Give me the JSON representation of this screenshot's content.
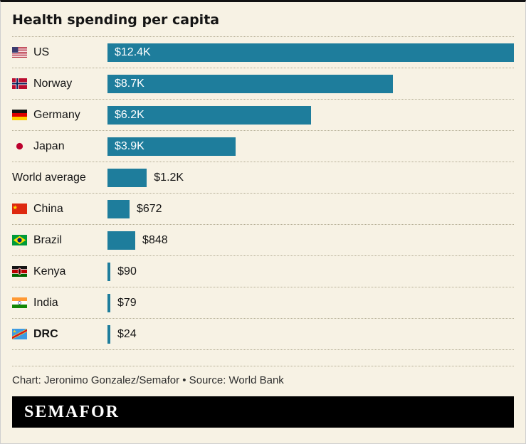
{
  "title": "Health spending per capita",
  "rows": [
    {
      "label": "US",
      "flag": "us-flag",
      "value": 12400,
      "value_label": "$12.4K",
      "label_inside": true,
      "bold": false
    },
    {
      "label": "Norway",
      "flag": "norway-flag",
      "value": 8700,
      "value_label": "$8.7K",
      "label_inside": true,
      "bold": false
    },
    {
      "label": "Germany",
      "flag": "germany-flag",
      "value": 6200,
      "value_label": "$6.2K",
      "label_inside": true,
      "bold": false
    },
    {
      "label": "Japan",
      "flag": "japan-flag",
      "value": 3900,
      "value_label": "$3.9K",
      "label_inside": true,
      "bold": false
    },
    {
      "label": "World average",
      "flag": null,
      "value": 1200,
      "value_label": "$1.2K",
      "label_inside": false,
      "bold": false
    },
    {
      "label": "China",
      "flag": "china-flag",
      "value": 672,
      "value_label": "$672",
      "label_inside": false,
      "bold": false
    },
    {
      "label": "Brazil",
      "flag": "brazil-flag",
      "value": 848,
      "value_label": "$848",
      "label_inside": false,
      "bold": false
    },
    {
      "label": "Kenya",
      "flag": "kenya-flag",
      "value": 90,
      "value_label": "$90",
      "label_inside": false,
      "bold": false
    },
    {
      "label": "India",
      "flag": "india-flag",
      "value": 79,
      "value_label": "$79",
      "label_inside": false,
      "bold": false
    },
    {
      "label": "DRC",
      "flag": "drc-flag",
      "value": 24,
      "value_label": "$24",
      "label_inside": false,
      "bold": true
    }
  ],
  "chart_data": {
    "type": "bar",
    "orientation": "horizontal",
    "title": "Health spending per capita",
    "categories": [
      "US",
      "Norway",
      "Germany",
      "Japan",
      "World average",
      "China",
      "Brazil",
      "Kenya",
      "India",
      "DRC"
    ],
    "values": [
      12400,
      8700,
      6200,
      3900,
      1200,
      672,
      848,
      90,
      79,
      24
    ],
    "value_labels": [
      "$12.4K",
      "$8.7K",
      "$6.2K",
      "$3.9K",
      "$1.2K",
      "$672",
      "$848",
      "$90",
      "$79",
      "$24"
    ],
    "xlim": [
      0,
      12400
    ],
    "grid": false,
    "legend": false
  },
  "footer": {
    "credit": "Chart: Jeronimo Gonzalez/Semafor • Source: World Bank",
    "brand": "SEMAFOR"
  },
  "colors": {
    "bar": "#1e7d9c",
    "background": "#f7f2e4",
    "banner": "#000000",
    "text": "#151515",
    "value_inside": "#ffffff"
  }
}
